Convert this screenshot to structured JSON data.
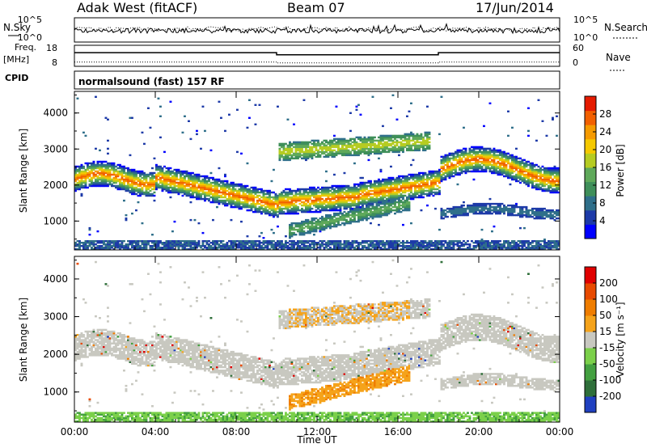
{
  "header": {
    "station": "Adak West (fitACF)",
    "beam": "Beam 07",
    "date": "17/Jun/2014"
  },
  "chart_data": [
    {
      "type": "line",
      "panel": "noise",
      "left_label": "N.Sky",
      "right_label": "N.Search",
      "left_ticks": [
        "10^5",
        "10^0"
      ],
      "right_ticks": [
        "10^5",
        "10^0"
      ],
      "scale": "log"
    },
    {
      "type": "line",
      "panel": "frequency",
      "left_label_1": "Freq.",
      "left_label_2": "[MHz]",
      "right_label": "Nave",
      "left_ticks": [
        "18",
        "8"
      ],
      "right_ticks": [
        "60",
        "0"
      ],
      "ylim_left": [
        8,
        18
      ],
      "ylim_right": [
        0,
        60
      ],
      "freq_segments": [
        {
          "x": [
            "00:00",
            "10:00"
          ],
          "value": 14.5
        },
        {
          "x": [
            "10:00",
            "18:00"
          ],
          "value": 13.5
        },
        {
          "x": [
            "18:00",
            "24:00"
          ],
          "value": 14.5
        }
      ],
      "nave_segments": [
        {
          "x": [
            "00:00",
            "10:00"
          ],
          "value": 12
        },
        {
          "x": [
            "10:00",
            "18:00"
          ],
          "value": 10
        },
        {
          "x": [
            "18:00",
            "24:00"
          ],
          "value": 12
        }
      ]
    },
    {
      "type": "heatmap",
      "panel": "cpid",
      "label": "CPID",
      "text": "normalsound (fast) 157 RF"
    },
    {
      "type": "heatmap",
      "panel": "power",
      "ylabel": "Slant Range [km]",
      "yticks": [
        "4000",
        "3000",
        "2000",
        "1000"
      ],
      "ylim": [
        200,
        4600
      ],
      "colorbar_label": "Power [dB]",
      "colorbar_ticks": [
        "28",
        "24",
        "20",
        "16",
        "12",
        "8",
        "4"
      ],
      "colorbar_range": [
        0,
        30
      ],
      "colors": [
        "#0000ff",
        "#1d3aa8",
        "#2f6f8a",
        "#3f8f5a",
        "#5fa95a",
        "#b6cc22",
        "#f5c900",
        "#f59a00",
        "#f26000",
        "#e51b00"
      ]
    },
    {
      "type": "heatmap",
      "panel": "velocity",
      "ylabel": "Slant Range [km]",
      "yticks": [
        "4000",
        "3000",
        "2000",
        "1000"
      ],
      "ylim": [
        200,
        4600
      ],
      "colorbar_label": "Velocity [m s⁻¹]",
      "colorbar_ticks": [
        "200",
        "100",
        "50",
        "15",
        "-15",
        "-50",
        "-100",
        "-200"
      ],
      "colors": [
        "#2040c0",
        "#2f6f3a",
        "#43a040",
        "#7bd04a",
        "#c8c8c0",
        "#f5a31b",
        "#ef7d00",
        "#e84a00",
        "#e00000"
      ],
      "xlabel": "Time UT",
      "xticks": [
        "00:00",
        "04:00",
        "08:00",
        "12:00",
        "16:00",
        "20:00",
        "00:00"
      ],
      "xlim_hours": [
        0,
        24
      ]
    }
  ]
}
